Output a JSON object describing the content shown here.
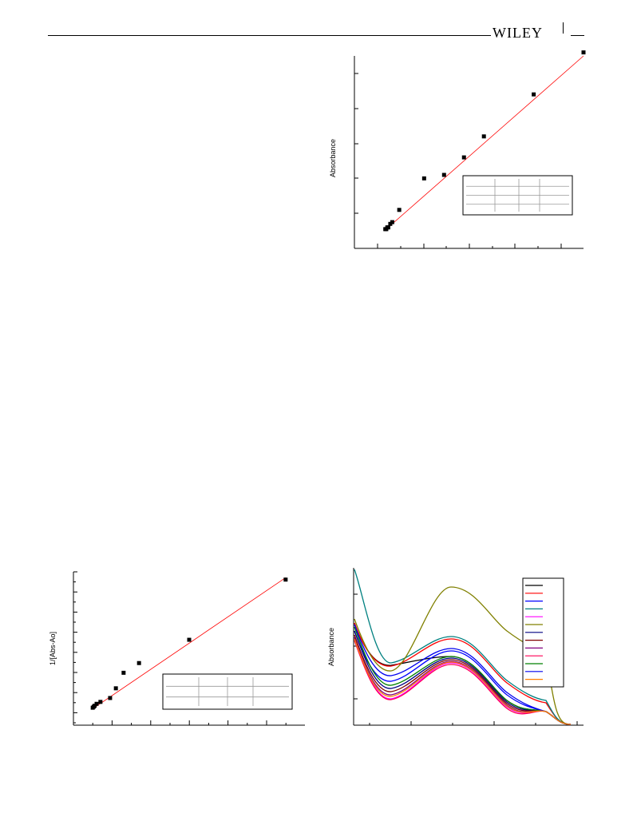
{
  "header": {
    "publisher": "WILEY"
  },
  "chart_data": [
    {
      "type": "scatter",
      "ylabel": "Absorbance",
      "xlim": [
        -3,
        20
      ],
      "ylim": [
        -0.5,
        5.0
      ],
      "points": [
        [
          0.1,
          0.05
        ],
        [
          0.2,
          0.05
        ],
        [
          0.3,
          0.1
        ],
        [
          0.4,
          0.1
        ],
        [
          0.6,
          0.2
        ],
        [
          0.8,
          0.25
        ],
        [
          1.5,
          0.6
        ],
        [
          4,
          1.5
        ],
        [
          6,
          1.6
        ],
        [
          8,
          2.1
        ],
        [
          10,
          2.7
        ],
        [
          15,
          3.9
        ],
        [
          20,
          5.1
        ]
      ],
      "fit_line": {
        "x1": 0,
        "y1": 0.0,
        "x2": 20,
        "y2": 5.0,
        "color": "#ff0000"
      },
      "legend_table": {
        "rows": 4,
        "cols": 4
      }
    },
    {
      "type": "scatter",
      "ylabel": "1/[Abs-Ao]",
      "xlim": [
        -1,
        11
      ],
      "ylim": [
        -0.4,
        7.5
      ],
      "points": [
        [
          0,
          0.5
        ],
        [
          0.05,
          0.55
        ],
        [
          0.1,
          0.6
        ],
        [
          0.2,
          0.7
        ],
        [
          0.4,
          0.8
        ],
        [
          0.9,
          1.0
        ],
        [
          1.2,
          1.5
        ],
        [
          1.6,
          2.3
        ],
        [
          2.4,
          2.8
        ],
        [
          5,
          4.0
        ],
        [
          10,
          7.1
        ]
      ],
      "fit_line": {
        "x1": 0,
        "y1": 0.45,
        "x2": 10,
        "y2": 7.2,
        "color": "#ff0000"
      },
      "legend_table": {
        "rows": 3,
        "cols": 4
      }
    },
    {
      "type": "line",
      "ylabel": "Absorbance",
      "legend_colors": [
        "#000000",
        "#ff0000",
        "#0000ff",
        "#008080",
        "#ff00ff",
        "#808000",
        "#000080",
        "#800000",
        "#800080",
        "#ff0055",
        "#008000",
        "#0000ee",
        "#ff8000"
      ],
      "series_count": 13
    }
  ]
}
